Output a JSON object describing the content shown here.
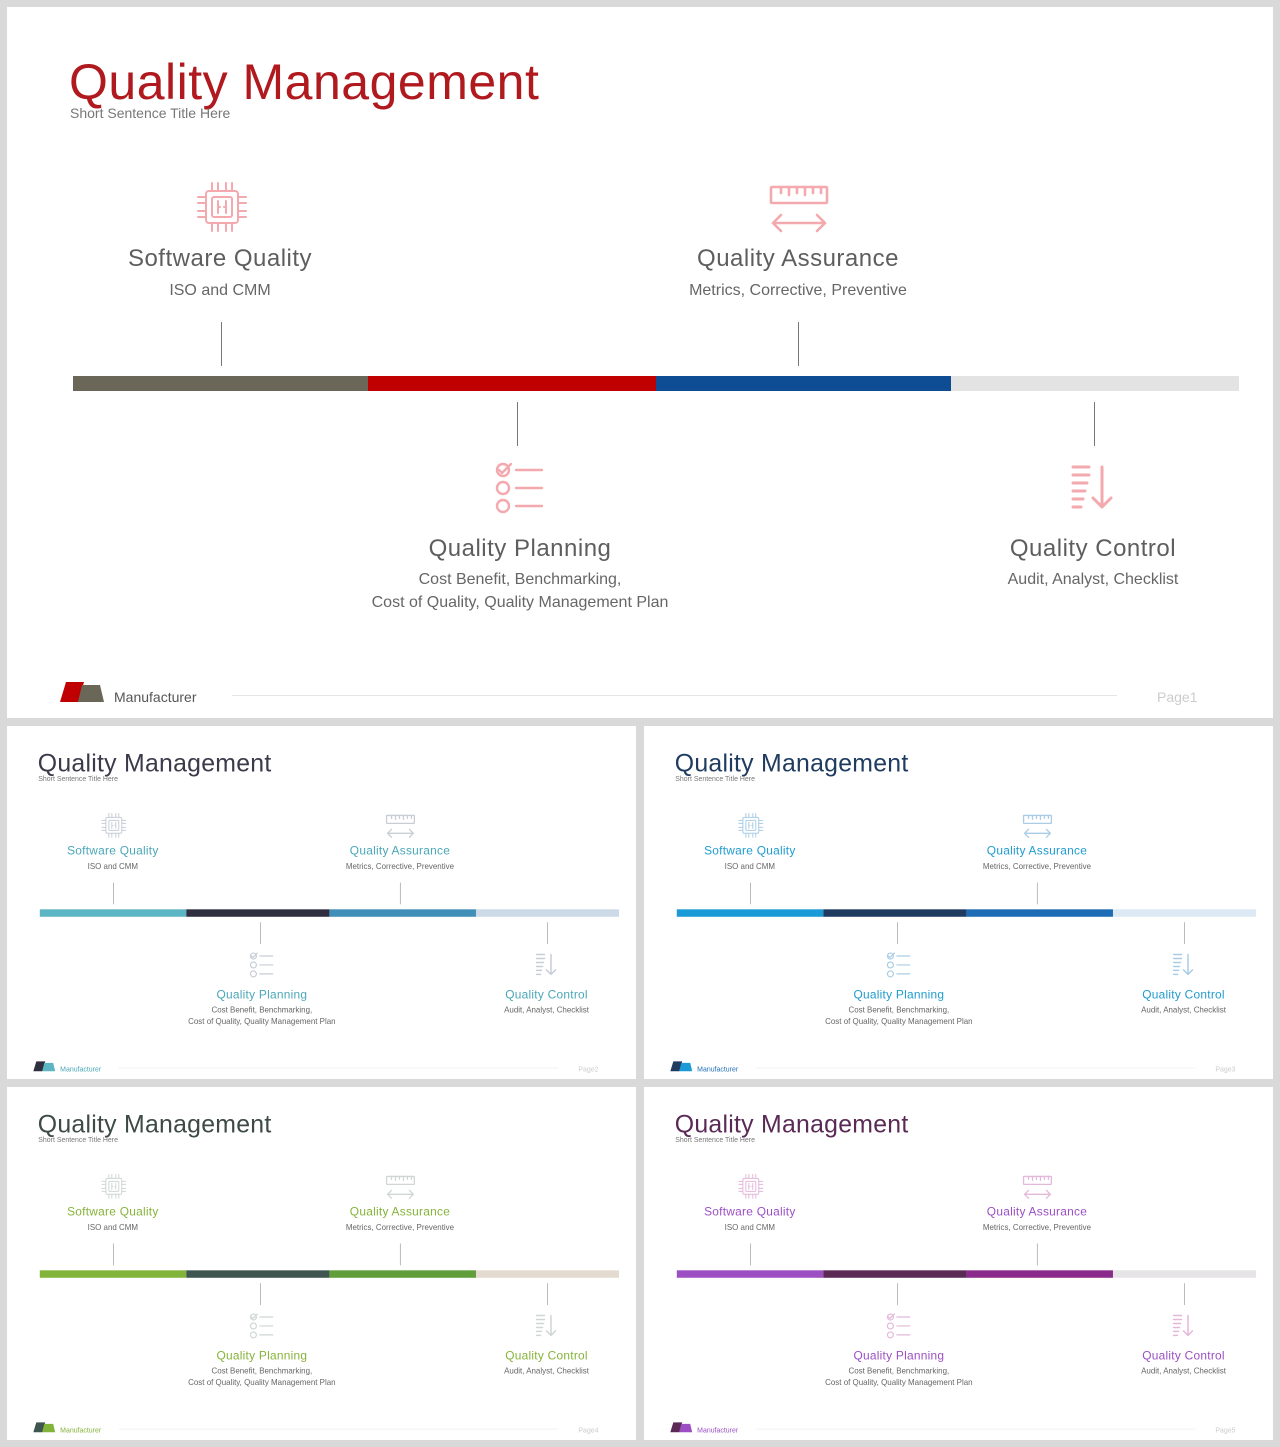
{
  "slides": [
    {
      "title": "Quality Management",
      "subtitle": "Short Sentence Title Here",
      "items": [
        {
          "title": "Software Quality",
          "desc": [
            "ISO and CMM"
          ]
        },
        {
          "title": "Quality Planning",
          "desc": [
            "Cost Benefit, Benchmarking,",
            "Cost of Quality, Quality Management Plan"
          ]
        },
        {
          "title": "Quality Assurance",
          "desc": [
            "Metrics, Corrective, Preventive"
          ]
        },
        {
          "title": "Quality Control",
          "desc": [
            "Audit, Analyst, Checklist"
          ]
        }
      ],
      "brand": "Manufacturer",
      "page": "Page1",
      "colors": {
        "title": "#b01a1f",
        "item_text": "#5e5e5e",
        "icon": "#f3a9ad",
        "bars": [
          "#6b6758",
          "#c00000",
          "#0e4c93",
          "#e3e3e3"
        ],
        "logo": [
          "#c00000",
          "#6b6758"
        ],
        "brand": "#555555"
      }
    },
    {
      "title": "Quality Management",
      "subtitle": "Short Sentence Title Here",
      "items": [
        {
          "title": "Software Quality",
          "desc": [
            "ISO and CMM"
          ]
        },
        {
          "title": "Quality Planning",
          "desc": [
            "Cost Benefit, Benchmarking,",
            "Cost of Quality, Quality Management Plan"
          ]
        },
        {
          "title": "Quality Assurance",
          "desc": [
            "Metrics, Corrective, Preventive"
          ]
        },
        {
          "title": "Quality Control",
          "desc": [
            "Audit, Analyst, Checklist"
          ]
        }
      ],
      "brand": "Manufacturer",
      "page": "Page2",
      "colors": {
        "title": "#3a3a4a",
        "item_text": "#4aa7b8",
        "icon": "#c8cdd6",
        "bars": [
          "#5bb5c2",
          "#2f2f3f",
          "#3f8fb8",
          "#ccd9e6"
        ],
        "logo": [
          "#2f2f3f",
          "#5bb5c2"
        ],
        "brand": "#4aa7b8"
      }
    },
    {
      "title": "Quality Management",
      "subtitle": "Short Sentence Title Here",
      "items": [
        {
          "title": "Software Quality",
          "desc": [
            "ISO and CMM"
          ]
        },
        {
          "title": "Quality Planning",
          "desc": [
            "Cost Benefit, Benchmarking,",
            "Cost of Quality, Quality Management Plan"
          ]
        },
        {
          "title": "Quality Assurance",
          "desc": [
            "Metrics, Corrective, Preventive"
          ]
        },
        {
          "title": "Quality Control",
          "desc": [
            "Audit, Analyst, Checklist"
          ]
        }
      ],
      "brand": "Manufacturer",
      "page": "Page3",
      "colors": {
        "title": "#1f3b60",
        "item_text": "#1f9bd0",
        "icon": "#a9cde6",
        "bars": [
          "#1a9ad6",
          "#1f3b60",
          "#1d6cb5",
          "#dce9f5"
        ],
        "logo": [
          "#1f3b60",
          "#1a9ad6"
        ],
        "brand": "#1f6fb5"
      }
    },
    {
      "title": "Quality Management",
      "subtitle": "Short Sentence Title Here",
      "items": [
        {
          "title": "Software Quality",
          "desc": [
            "ISO and CMM"
          ]
        },
        {
          "title": "Quality Planning",
          "desc": [
            "Cost Benefit, Benchmarking,",
            "Cost of Quality, Quality Management Plan"
          ]
        },
        {
          "title": "Quality Assurance",
          "desc": [
            "Metrics, Corrective, Preventive"
          ]
        },
        {
          "title": "Quality Control",
          "desc": [
            "Audit, Analyst, Checklist"
          ]
        }
      ],
      "brand": "Manufacturer",
      "page": "Page4",
      "colors": {
        "title": "#3d4a45",
        "item_text": "#86b33a",
        "icon": "#cfd6d3",
        "bars": [
          "#82b43a",
          "#3f5650",
          "#5f9e3a",
          "#e3dbcf"
        ],
        "logo": [
          "#3f5650",
          "#82b43a"
        ],
        "brand": "#86b33a"
      }
    },
    {
      "title": "Quality Management",
      "subtitle": "Short Sentence Title Here",
      "items": [
        {
          "title": "Software Quality",
          "desc": [
            "ISO and CMM"
          ]
        },
        {
          "title": "Quality Planning",
          "desc": [
            "Cost Benefit, Benchmarking,",
            "Cost of Quality, Quality Management Plan"
          ]
        },
        {
          "title": "Quality Assurance",
          "desc": [
            "Metrics, Corrective, Preventive"
          ]
        },
        {
          "title": "Quality Control",
          "desc": [
            "Audit, Analyst, Checklist"
          ]
        }
      ],
      "brand": "Manufacturer",
      "page": "Page5",
      "colors": {
        "title": "#5a2a55",
        "item_text": "#9b4fc2",
        "icon": "#e4b8d9",
        "bars": [
          "#9b4fc2",
          "#5a2a55",
          "#8a2a8a",
          "#e6e4e6"
        ],
        "logo": [
          "#5a2a55",
          "#9b4fc2"
        ],
        "brand": "#9b4fc2"
      }
    }
  ],
  "icons": [
    "chip-icon",
    "checklist-icon",
    "ruler-icon",
    "sort-down-icon"
  ]
}
